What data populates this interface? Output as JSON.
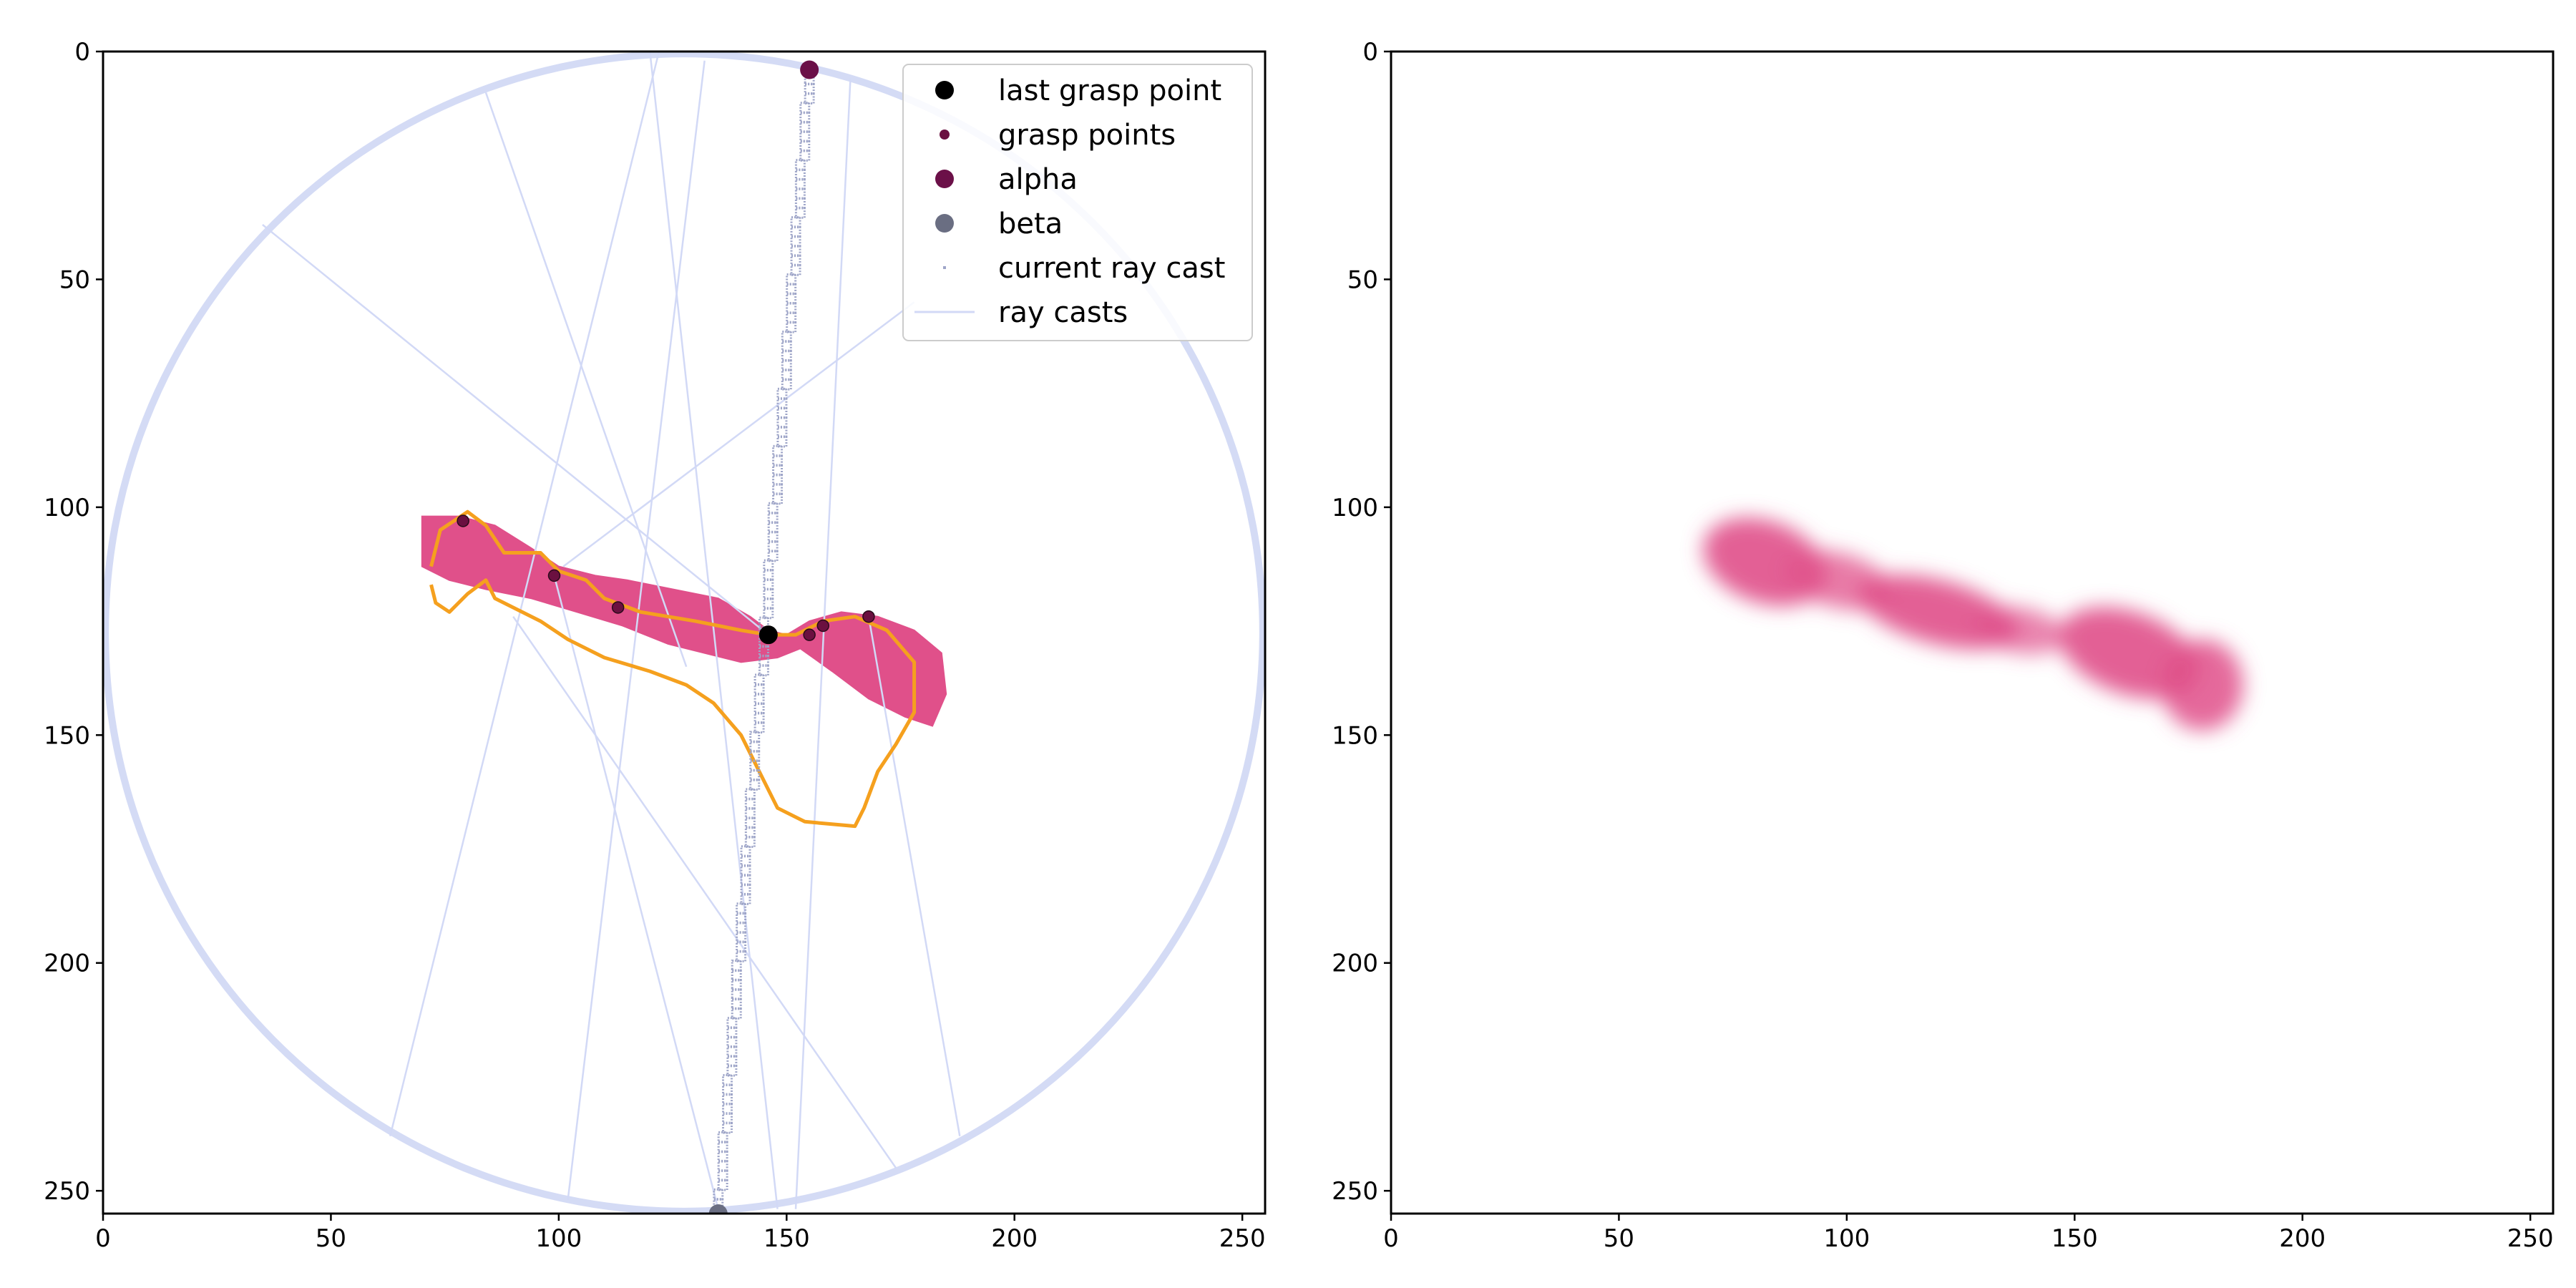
{
  "colors": {
    "circle": "#d4dbf5",
    "ray": "#d2d9f6",
    "object": "#e0508a",
    "contour": "#f5a01e",
    "contour_inner": "#f7d98a",
    "grasp": "#6b1040",
    "alpha": "#6b1048",
    "beta": "#6a6e82",
    "last": "#000000",
    "current_ray": "#9ea5c8"
  },
  "chart_data": [
    {
      "type": "scatter",
      "x_ticks": [
        0,
        50,
        100,
        150,
        200,
        250
      ],
      "y_ticks": [
        0,
        50,
        100,
        150,
        200,
        250
      ],
      "x_tick_labels": [
        "0",
        "50",
        "100",
        "150",
        "200",
        "250"
      ],
      "y_tick_labels": [
        "0",
        "50",
        "100",
        "150",
        "200",
        "250"
      ],
      "xlim": [
        0,
        255
      ],
      "ylim": [
        255,
        0
      ],
      "grid": false,
      "legend_position": "top-right",
      "legend": [
        {
          "label": "last grasp point",
          "marker": "dot-large",
          "color_key": "last"
        },
        {
          "label": "grasp points",
          "marker": "dot-small",
          "color_key": "grasp"
        },
        {
          "label": "alpha",
          "marker": "dot-large",
          "color_key": "alpha"
        },
        {
          "label": "beta",
          "marker": "dot-large",
          "color_key": "beta"
        },
        {
          "label": "current ray cast",
          "marker": "pixel",
          "color_key": "current_ray"
        },
        {
          "label": "ray casts",
          "marker": "line",
          "color_key": "ray"
        }
      ],
      "circle": {
        "center": [
          127.5,
          127.5
        ],
        "radius": 127
      },
      "object_polygon": [
        [
          70,
          102
        ],
        [
          78,
          102
        ],
        [
          86,
          104
        ],
        [
          94,
          109
        ],
        [
          100,
          113
        ],
        [
          108,
          115
        ],
        [
          115,
          116
        ],
        [
          125,
          118
        ],
        [
          135,
          120
        ],
        [
          142,
          124
        ],
        [
          146,
          127
        ],
        [
          150,
          128
        ],
        [
          155,
          125
        ],
        [
          162,
          123
        ],
        [
          170,
          124
        ],
        [
          178,
          127
        ],
        [
          184,
          132
        ],
        [
          185,
          141
        ],
        [
          182,
          148
        ],
        [
          176,
          146
        ],
        [
          168,
          142
        ],
        [
          160,
          136
        ],
        [
          153,
          131
        ],
        [
          148,
          133
        ],
        [
          140,
          134
        ],
        [
          132,
          132
        ],
        [
          124,
          130
        ],
        [
          114,
          126
        ],
        [
          104,
          123
        ],
        [
          94,
          120
        ],
        [
          84,
          118
        ],
        [
          76,
          116
        ],
        [
          70,
          113
        ]
      ],
      "contour": [
        [
          72,
          113
        ],
        [
          74,
          105
        ],
        [
          80,
          101
        ],
        [
          84,
          104
        ],
        [
          88,
          110
        ],
        [
          96,
          110
        ],
        [
          100,
          114
        ],
        [
          106,
          116
        ],
        [
          110,
          120
        ],
        [
          118,
          123
        ],
        [
          130,
          125
        ],
        [
          140,
          127
        ],
        [
          146,
          128
        ],
        [
          152,
          128
        ],
        [
          158,
          125
        ],
        [
          165,
          124
        ],
        [
          172,
          127
        ],
        [
          178,
          134
        ],
        [
          178,
          145
        ],
        [
          174,
          152
        ],
        [
          170,
          158
        ],
        [
          167,
          166
        ],
        [
          165,
          170
        ],
        [
          154,
          169
        ],
        [
          148,
          166
        ],
        [
          144,
          158
        ],
        [
          140,
          150
        ],
        [
          134,
          143
        ],
        [
          128,
          139
        ],
        [
          120,
          136
        ],
        [
          110,
          133
        ],
        [
          102,
          129
        ],
        [
          96,
          125
        ],
        [
          90,
          122
        ],
        [
          86,
          120
        ],
        [
          84,
          116
        ],
        [
          80,
          119
        ],
        [
          76,
          123
        ],
        [
          73,
          121
        ],
        [
          72,
          117
        ]
      ],
      "rays": [
        [
          [
            35,
            38
          ],
          [
            146,
            128
          ]
        ],
        [
          [
            84,
            9
          ],
          [
            128,
            135
          ]
        ],
        [
          [
            122,
            0
          ],
          [
            63,
            238
          ]
        ],
        [
          [
            120,
            0
          ],
          [
            148,
            254
          ]
        ],
        [
          [
            132,
            2
          ],
          [
            102,
            252
          ]
        ],
        [
          [
            164,
            6
          ],
          [
            152,
            254
          ]
        ],
        [
          [
            178,
            55
          ],
          [
            101,
            113
          ]
        ],
        [
          [
            90,
            124
          ],
          [
            174,
            245
          ]
        ],
        [
          [
            188,
            238
          ],
          [
            168,
            124
          ]
        ],
        [
          [
            99,
            115
          ],
          [
            135,
            254
          ]
        ]
      ],
      "current_ray": [
        [
          155,
          4
        ],
        [
          135,
          255
        ]
      ],
      "grasp_points": [
        [
          79,
          103
        ],
        [
          99,
          115
        ],
        [
          113,
          122
        ],
        [
          155,
          128
        ],
        [
          158,
          126
        ],
        [
          168,
          124
        ]
      ],
      "last_grasp_point": [
        146,
        128
      ],
      "alpha": [
        155,
        4
      ],
      "beta": [
        135,
        255
      ]
    },
    {
      "type": "heatmap",
      "x_ticks": [
        0,
        50,
        100,
        150,
        200,
        250
      ],
      "y_ticks": [
        0,
        50,
        100,
        150,
        200,
        250
      ],
      "x_tick_labels": [
        "0",
        "50",
        "100",
        "150",
        "200",
        "250"
      ],
      "y_tick_labels": [
        "0",
        "50",
        "100",
        "150",
        "200",
        "250"
      ],
      "xlim": [
        0,
        255
      ],
      "ylim": [
        255,
        0
      ],
      "grid": false,
      "blobs": [
        {
          "center": [
            82,
            112
          ],
          "radius": [
            14,
            9
          ],
          "angle": 20,
          "intensity": 0.9
        },
        {
          "center": [
            98,
            116
          ],
          "radius": [
            12,
            6
          ],
          "angle": 15,
          "intensity": 0.75
        },
        {
          "center": [
            120,
            123
          ],
          "radius": [
            18,
            7
          ],
          "angle": 15,
          "intensity": 0.9
        },
        {
          "center": [
            138,
            127
          ],
          "radius": [
            10,
            5
          ],
          "angle": 10,
          "intensity": 0.7
        },
        {
          "center": [
            162,
            132
          ],
          "radius": [
            16,
            9
          ],
          "angle": 20,
          "intensity": 0.9
        },
        {
          "center": [
            178,
            139
          ],
          "radius": [
            9,
            10
          ],
          "angle": 0,
          "intensity": 0.85
        }
      ]
    }
  ]
}
